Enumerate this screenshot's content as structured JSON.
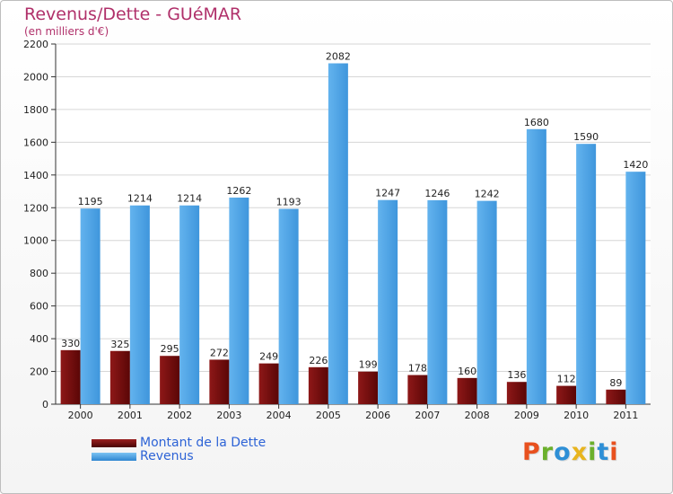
{
  "header": {
    "title": "Revenus/Dette - GUéMAR",
    "subtitle": "(en milliers d'€)"
  },
  "chart_data": {
    "type": "bar",
    "categories": [
      "2000",
      "2001",
      "2002",
      "2003",
      "2004",
      "2005",
      "2006",
      "2007",
      "2008",
      "2009",
      "2010",
      "2011"
    ],
    "series": [
      {
        "name": "Montant de la Dette",
        "color": "#7a1010",
        "values": [
          330,
          325,
          295,
          272,
          249,
          226,
          199,
          178,
          160,
          136,
          112,
          89
        ]
      },
      {
        "name": "Revenus",
        "color": "#4ea6e8",
        "values": [
          1195,
          1214,
          1214,
          1262,
          1193,
          2082,
          1247,
          1246,
          1242,
          1680,
          1590,
          1420
        ]
      }
    ],
    "ylim": [
      0,
      2200
    ],
    "yticks": [
      0,
      200,
      400,
      600,
      800,
      1000,
      1200,
      1400,
      1600,
      1800,
      2000,
      2200
    ],
    "grid": true,
    "legend_position": "bottom-left"
  },
  "legend": {
    "items": [
      {
        "label": "Montant de la Dette",
        "color": "#7a1010"
      },
      {
        "label": "Revenus",
        "color": "#4ea6e8"
      }
    ]
  },
  "logo": {
    "letters": [
      "P",
      "r",
      "o",
      "x",
      "i",
      "t",
      "i"
    ],
    "colors": [
      "#e8501e",
      "#6bb02c",
      "#2e8fd6",
      "#e8b41e",
      "#6bb02c",
      "#2e8fd6",
      "#e8501e"
    ]
  }
}
